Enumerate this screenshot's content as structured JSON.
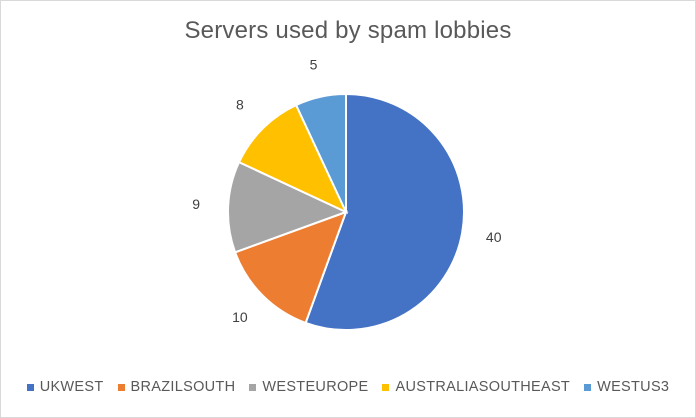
{
  "colors": {
    "ukwest": "#4472C4",
    "brazilsouth": "#ED7D31",
    "westeurope": "#A5A5A5",
    "australiasoutheast": "#FFC000",
    "westus3": "#5B9BD5"
  },
  "chart_data": {
    "type": "pie",
    "title": "Servers used by spam lobbies",
    "categories": [
      "UKWEST",
      "BRAZILSOUTH",
      "WESTEUROPE",
      "AUSTRALIASOUTHEAST",
      "WESTUS3"
    ],
    "values": [
      40,
      10,
      9,
      8,
      5
    ],
    "data_labels": [
      "40",
      "10",
      "9",
      "8",
      "5"
    ],
    "legend_position": "bottom"
  }
}
